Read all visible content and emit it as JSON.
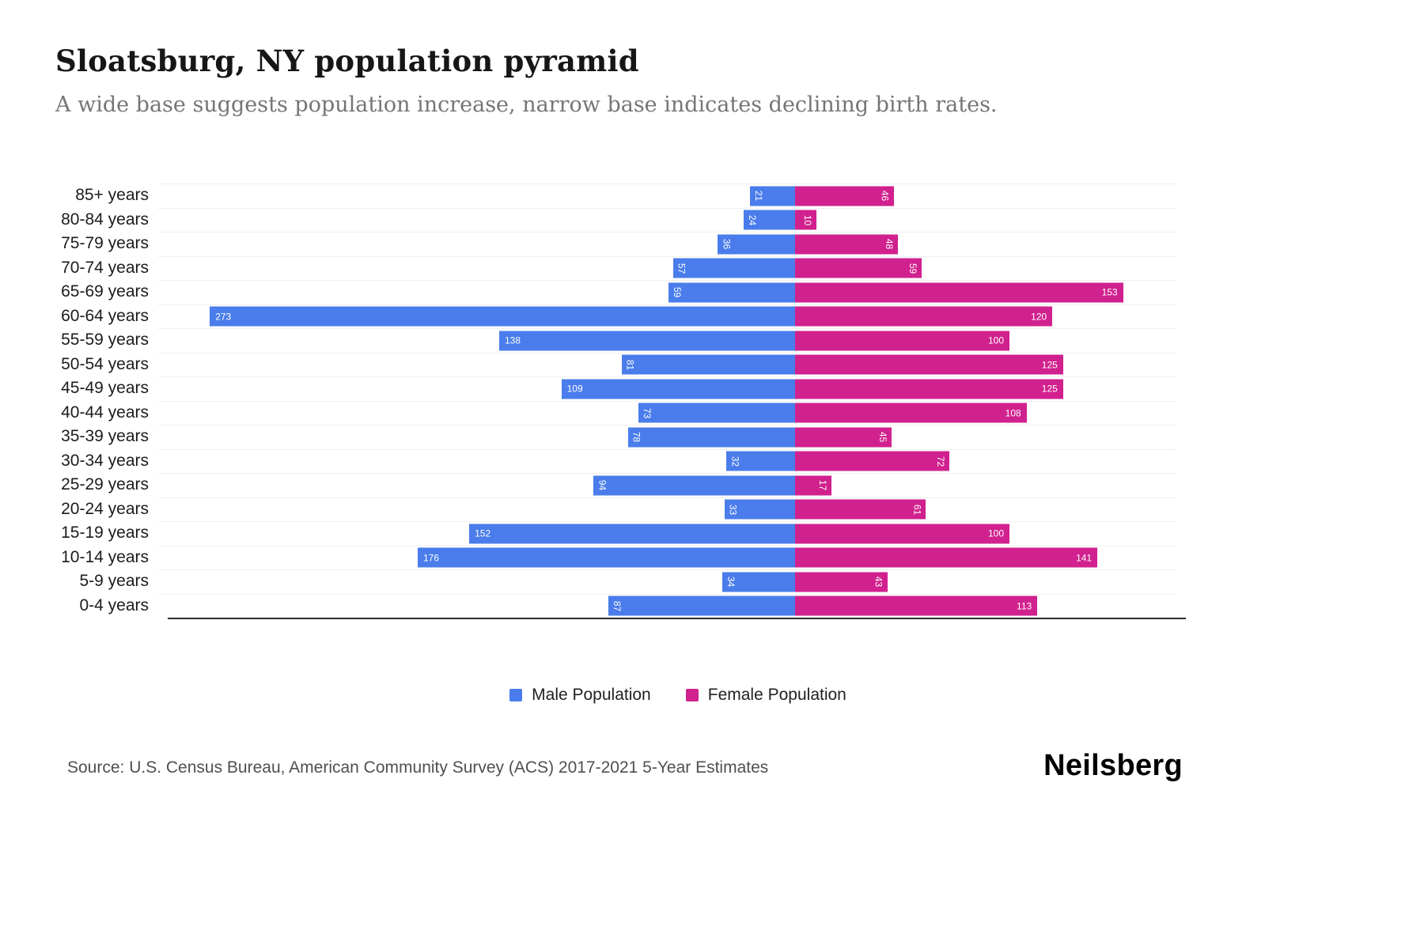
{
  "header": {
    "title": "Sloatsburg, NY population pyramid",
    "subtitle": "A wide base suggests population increase, narrow base indicates declining birth rates."
  },
  "chart_data": {
    "type": "bar",
    "variant": "population-pyramid",
    "title": "Sloatsburg, NY population pyramid",
    "xlabel": "",
    "ylabel": "",
    "grid": "faint horizontal row lines",
    "legend_position": "bottom-center",
    "value_labels": "inside outer end, white; rotated vertical when value < 100",
    "categories": [
      "85+ years",
      "80-84 years",
      "75-79 years",
      "70-74 years",
      "65-69 years",
      "60-64 years",
      "55-59 years",
      "50-54 years",
      "45-49 years",
      "40-44 years",
      "35-39 years",
      "30-34 years",
      "25-29 years",
      "20-24 years",
      "15-19 years",
      "10-14 years",
      "5-9 years",
      "0-4 years"
    ],
    "series": [
      {
        "name": "Male Population",
        "side": "left",
        "color": "#4A7DEB",
        "values": [
          21,
          24,
          36,
          57,
          59,
          273,
          138,
          81,
          109,
          73,
          78,
          32,
          94,
          33,
          152,
          176,
          34,
          87
        ]
      },
      {
        "name": "Female Population",
        "side": "right",
        "color": "#D1218E",
        "values": [
          46,
          10,
          48,
          59,
          153,
          120,
          100,
          125,
          125,
          108,
          45,
          72,
          17,
          61,
          100,
          141,
          43,
          113
        ]
      }
    ],
    "male_axis_max": 297,
    "female_axis_max": 178
  },
  "colors": {
    "male": "#4A7DEB",
    "female": "#D1218E",
    "axis": "#2d2d2d",
    "gridline": "#f0f0f0"
  },
  "footer": {
    "source": "Source: U.S. Census Bureau, American Community Survey (ACS) 2017-2021 5-Year Estimates",
    "brand": "Neilsberg"
  }
}
